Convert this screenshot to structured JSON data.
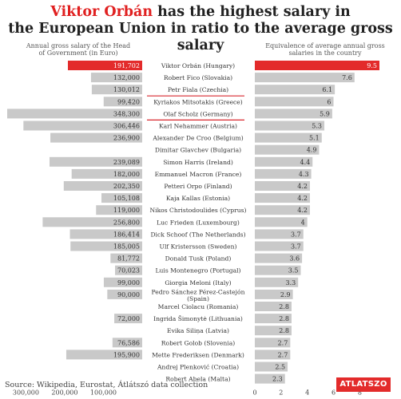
{
  "title": {
    "highlight": "Viktor Orbán",
    "rest_line1": " has the highest salary in",
    "line2": "the European Union in ratio to the average gross salary"
  },
  "left_header": "Annual gross salary of the Head of Government (in Euro)",
  "right_header": "Equivalence of average annual gross salaries in the country",
  "source": "Source: Wikipedia, Eurostat, Átlátszó data collection",
  "logo": "ATLATSZO",
  "colors": {
    "highlight": "#e32b2b",
    "bar": "#c9c9c9",
    "underline": "#d9282f"
  },
  "chart_data": [
    {
      "type": "bar",
      "orientation": "horizontal",
      "direction": "leftward",
      "title": "Annual gross salary of the Head of Government (in Euro)",
      "xlim": [
        0,
        348300
      ],
      "xticks": [
        300000,
        200000,
        100000
      ],
      "xtick_labels": [
        "300,000",
        "200,000",
        "100,000"
      ],
      "categories": [
        "Viktor Orbán (Hungary)",
        "Robert Fico (Slovakia)",
        "Petr Fiala (Czechia)",
        "Kyriakos Mitsotakis (Greece)",
        "Olaf Scholz (Germany)",
        "Karl Nehammer (Austria)",
        "Alexander De Croo (Belgium)",
        "Dimitar Glavchev (Bulgaria)",
        "Simon Harris (Ireland)",
        "Emmanuel Macron (France)",
        "Petteri Orpo (Finland)",
        "Kaja Kallas (Estonia)",
        "Nikos Christodoulides (Cyprus)",
        "Luc Frieden (Luxembourg)",
        "Dick Schoof (The Netherlands)",
        "Ulf Kristersson (Sweden)",
        "Donald Tusk (Poland)",
        "Luis Montenegro (Portugal)",
        "Giorgia Meloni (Italy)",
        "Pedro Sánchez Pérez-Castejón (Spain)",
        "Marcel Ciolacu (Romania)",
        "Ingrida Šimonytė (Lithuania)",
        "Evika Siliņa (Latvia)",
        "Robert Golob (Slovenia)",
        "Mette Frederiksen (Denmark)",
        "Andrej Plenković (Croatia)",
        "Robert Abela (Malta)"
      ],
      "values": [
        191702,
        132000,
        130012,
        99420,
        348300,
        306446,
        236900,
        null,
        239089,
        182000,
        202350,
        105108,
        119000,
        256800,
        186414,
        185005,
        81772,
        70023,
        99000,
        90000,
        null,
        72000,
        null,
        76586,
        195900,
        null,
        null
      ],
      "value_labels": [
        "191,702",
        "132,000",
        "130,012",
        "99,420",
        "348,300",
        "306,446",
        "236,900",
        "",
        "239,089",
        "182,000",
        "202,350",
        "105,108",
        "119,000",
        "256,800",
        "186,414",
        "185,005",
        "81,772",
        "70,023",
        "99,000",
        "90,000",
        "",
        "72,000",
        "",
        "76,586",
        "195,900",
        "",
        ""
      ]
    },
    {
      "type": "bar",
      "orientation": "horizontal",
      "title": "Equivalence of average annual gross salaries in the country",
      "xlim": [
        0,
        9.5
      ],
      "xticks": [
        0,
        2,
        4,
        6,
        8
      ],
      "xtick_labels": [
        "0",
        "2",
        "4",
        "6",
        "8"
      ],
      "categories": [
        "Viktor Orbán (Hungary)",
        "Robert Fico (Slovakia)",
        "Petr Fiala (Czechia)",
        "Kyriakos Mitsotakis (Greece)",
        "Olaf Scholz (Germany)",
        "Karl Nehammer (Austria)",
        "Alexander De Croo (Belgium)",
        "Dimitar Glavchev (Bulgaria)",
        "Simon Harris (Ireland)",
        "Emmanuel Macron (France)",
        "Petteri Orpo (Finland)",
        "Kaja Kallas (Estonia)",
        "Nikos Christodoulides (Cyprus)",
        "Luc Frieden (Luxembourg)",
        "Dick Schoof (The Netherlands)",
        "Ulf Kristersson (Sweden)",
        "Donald Tusk (Poland)",
        "Luis Montenegro (Portugal)",
        "Giorgia Meloni (Italy)",
        "Pedro Sánchez Pérez-Castejón (Spain)",
        "Marcel Ciolacu (Romania)",
        "Ingrida Šimonytė (Lithuania)",
        "Evika Siliņa (Latvia)",
        "Robert Golob (Slovenia)",
        "Mette Frederiksen (Denmark)",
        "Andrej Plenković (Croatia)",
        "Robert Abela (Malta)"
      ],
      "values": [
        9.5,
        7.6,
        6.1,
        6,
        5.9,
        5.3,
        5.1,
        4.9,
        4.4,
        4.3,
        4.2,
        4.2,
        4.2,
        4,
        3.7,
        3.7,
        3.6,
        3.5,
        3.3,
        2.9,
        2.8,
        2.8,
        2.8,
        2.7,
        2.7,
        2.5,
        2.3
      ],
      "value_labels": [
        "9.5",
        "7.6",
        "6.1",
        "6",
        "5.9",
        "5.3",
        "5.1",
        "4.9",
        "4.4",
        "4.3",
        "4.2",
        "4.2",
        "4.2",
        "4",
        "3.7",
        "3.7",
        "3.6",
        "3.5",
        "3.3",
        "2.9",
        "2.8",
        "2.8",
        "2.8",
        "2.7",
        "2.7",
        "2.5",
        "2.3"
      ],
      "highlight_index": 0,
      "underlined_indices": [
        2,
        4
      ]
    }
  ]
}
